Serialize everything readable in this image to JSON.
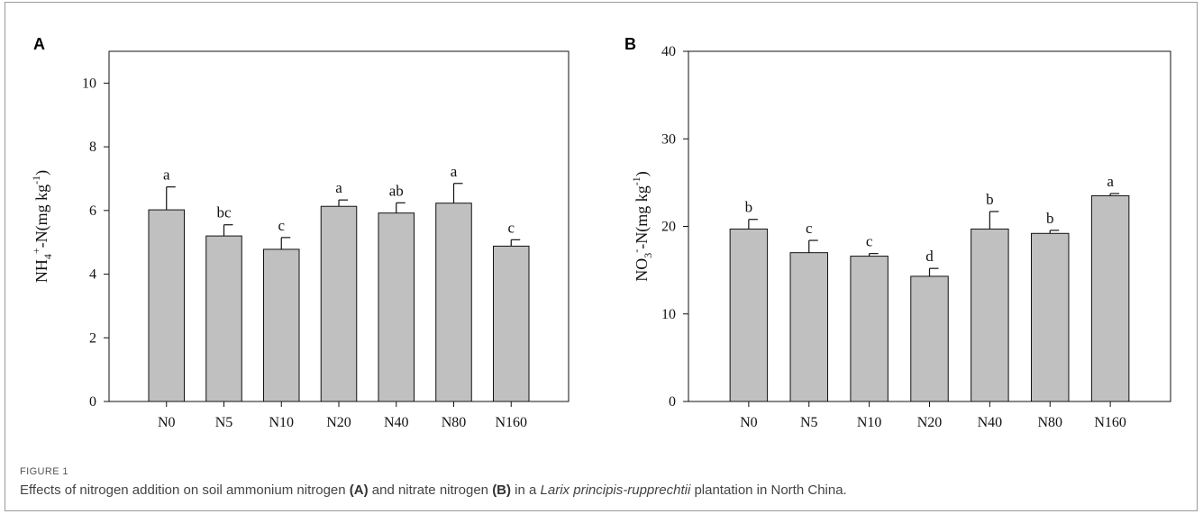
{
  "figure": {
    "label": "FIGURE 1",
    "caption": {
      "part1": "Effects of nitrogen addition on soil ammonium nitrogen ",
      "tagA": "(A)",
      "part2": " and nitrate nitrogen ",
      "tagB": "(B)",
      "part3": " in a ",
      "species": "Larix principis-rupprechtii",
      "part4": " plantation in North China."
    }
  },
  "chart_data": [
    {
      "panel": "A",
      "type": "bar",
      "categories": [
        "N0",
        "N5",
        "N10",
        "N20",
        "N40",
        "N80",
        "N160"
      ],
      "values": [
        6.02,
        5.2,
        4.78,
        6.13,
        5.92,
        6.23,
        4.88
      ],
      "errors": [
        0.72,
        0.35,
        0.37,
        0.2,
        0.32,
        0.62,
        0.2
      ],
      "letters": [
        "a",
        "bc",
        "c",
        "a",
        "ab",
        "a",
        "c"
      ],
      "ylabel": {
        "base": "NH",
        "sub": "4",
        "sup": "+",
        "rest": "-N(mg kg",
        "unit_sup": "-1",
        "close": ")"
      },
      "ylim": [
        0,
        11
      ],
      "yticks": [
        0,
        2,
        4,
        6,
        8,
        10
      ],
      "grid": false,
      "bar_color": "#c0c0c0"
    },
    {
      "panel": "B",
      "type": "bar",
      "categories": [
        "N0",
        "N5",
        "N10",
        "N20",
        "N40",
        "N80",
        "N160"
      ],
      "values": [
        19.7,
        17.0,
        16.6,
        14.3,
        19.7,
        19.2,
        23.5
      ],
      "errors": [
        1.1,
        1.4,
        0.3,
        0.9,
        2.0,
        0.35,
        0.25
      ],
      "letters": [
        "b",
        "c",
        "c",
        "d",
        "b",
        "b",
        "a"
      ],
      "ylabel": {
        "base": "NO",
        "sub": "3",
        "sup": "-",
        "rest": "-N(mg kg",
        "unit_sup": "-1",
        "close": ")"
      },
      "ylim": [
        0,
        40
      ],
      "yticks": [
        0,
        10,
        20,
        30,
        40
      ],
      "grid": false,
      "bar_color": "#c0c0c0"
    }
  ]
}
